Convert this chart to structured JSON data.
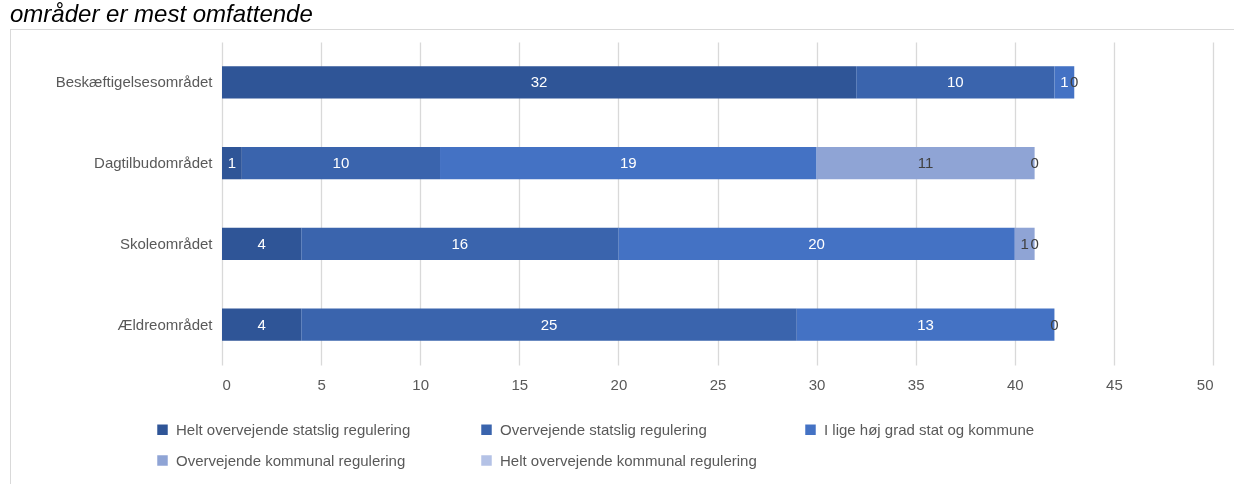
{
  "chart_data": {
    "type": "bar",
    "title": "områder er mest omfattende",
    "orientation": "horizontal",
    "stacked": true,
    "categories": [
      "Beskæftigelsesområdet",
      "Dagtilbudområdet",
      "Skoleområdet",
      "Ældreområdet"
    ],
    "series": [
      {
        "name": "Helt overvejende statslig regulering",
        "color": "#2f5597",
        "values": [
          32,
          1,
          4,
          4
        ],
        "value_labels": [
          "32",
          "1",
          "4",
          "4"
        ]
      },
      {
        "name": "Overvejende statslig regulering",
        "color": "#3a64ad",
        "values": [
          10,
          10,
          16,
          25
        ],
        "value_labels": [
          "10",
          "10",
          "16",
          "25"
        ]
      },
      {
        "name": "I lige høj grad stat og kommune",
        "color": "#4472c4",
        "values": [
          1,
          19,
          20,
          13
        ],
        "value_labels": [
          "1",
          "19",
          "20",
          "13"
        ]
      },
      {
        "name": "Overvejende kommunal regulering",
        "color": "#8fa4d5",
        "values": [
          0,
          11,
          1,
          0
        ],
        "value_labels": [
          "0",
          "11",
          "1",
          "0"
        ]
      },
      {
        "name": "Helt overvejende kommunal regulering",
        "color": "#b4c2e6",
        "values": [
          0,
          0,
          0,
          0
        ],
        "value_labels": [
          null,
          "0",
          "0",
          null
        ]
      }
    ],
    "xlim": [
      0,
      50
    ],
    "xticks": [
      0,
      5,
      10,
      15,
      20,
      25,
      30,
      35,
      40,
      45,
      50
    ],
    "grid": "x",
    "legend": "bottom"
  }
}
